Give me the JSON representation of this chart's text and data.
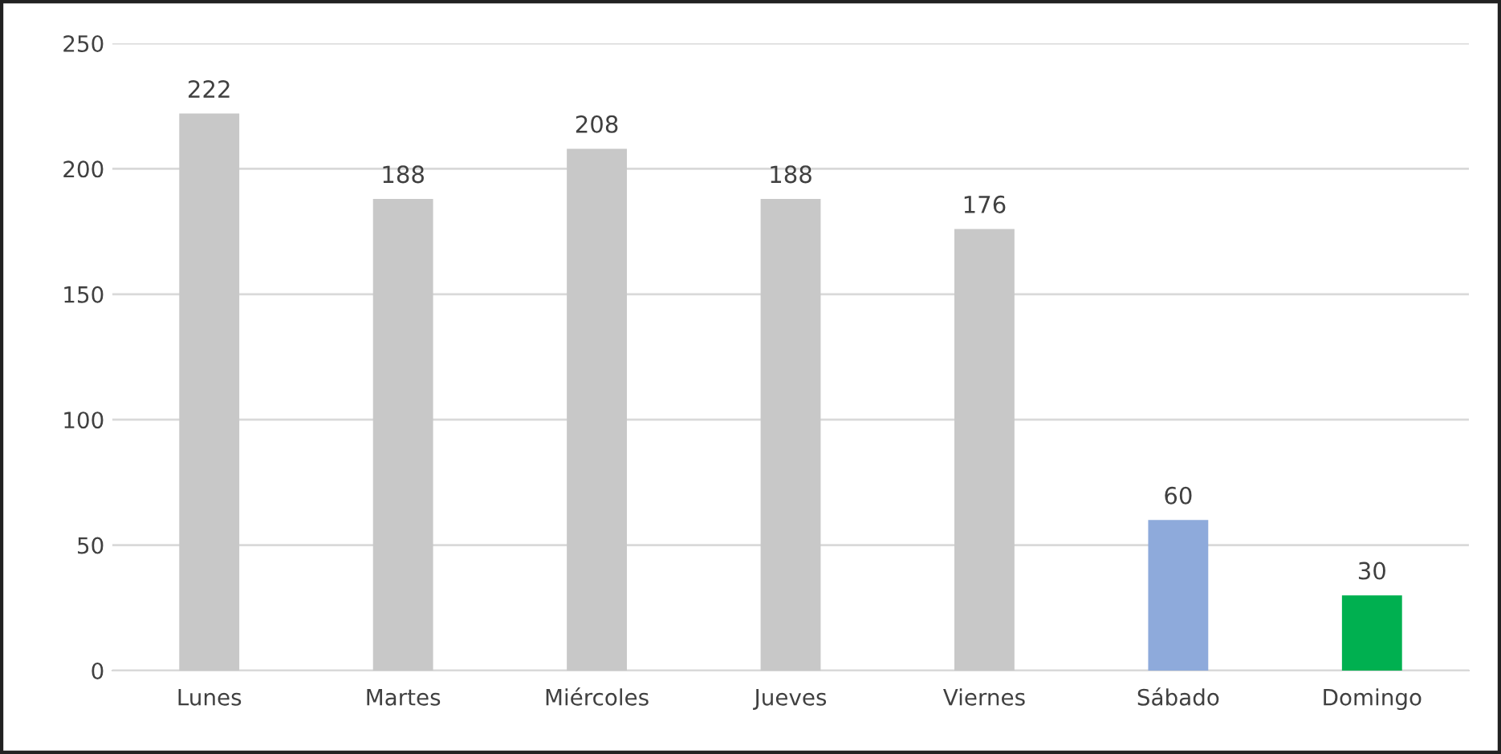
{
  "chart_data": {
    "type": "bar",
    "categories": [
      "Lunes",
      "Martes",
      "Miércoles",
      "Jueves",
      "Viernes",
      "Sábado",
      "Domingo"
    ],
    "values": [
      222,
      188,
      208,
      188,
      176,
      60,
      30
    ],
    "colors": [
      "#c8c8c8",
      "#c8c8c8",
      "#c8c8c8",
      "#c8c8c8",
      "#c8c8c8",
      "#8eaadb",
      "#00b050"
    ],
    "ylim": [
      0,
      250
    ],
    "yticks": [
      0,
      50,
      100,
      150,
      200,
      250
    ],
    "grid": "y",
    "data_labels": true
  }
}
